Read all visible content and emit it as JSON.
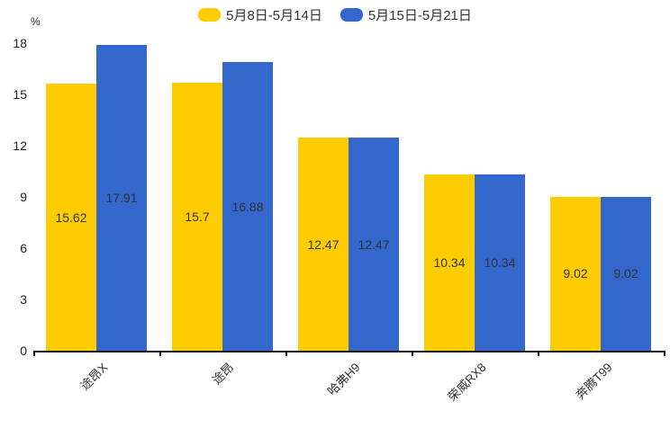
{
  "chart_data": {
    "type": "bar",
    "title": "",
    "unit_label": "%",
    "xlabel": "",
    "ylabel": "%",
    "categories": [
      "途昂X",
      "途昂",
      "哈弗H9",
      "荣威RX8",
      "奔腾T99"
    ],
    "series": [
      {
        "name": "5月8日-5月14日",
        "color": "#FFCC00",
        "values": [
          15.62,
          15.7,
          12.47,
          10.34,
          9.02
        ]
      },
      {
        "name": "5月15日-5月21日",
        "color": "#3467CB",
        "values": [
          17.91,
          16.88,
          12.47,
          10.34,
          9.02
        ]
      }
    ],
    "value_labels_inside_bars": true,
    "ylim": [
      0,
      18
    ],
    "yticks": [
      0,
      3,
      6,
      9,
      12,
      15,
      18
    ],
    "grid": false,
    "legend_position": "top",
    "colors": {
      "value_label_text": "#333333",
      "axis_line": "#111111",
      "tick_text": "#222222",
      "category_text": "#333333",
      "background": "#ffffff"
    }
  }
}
